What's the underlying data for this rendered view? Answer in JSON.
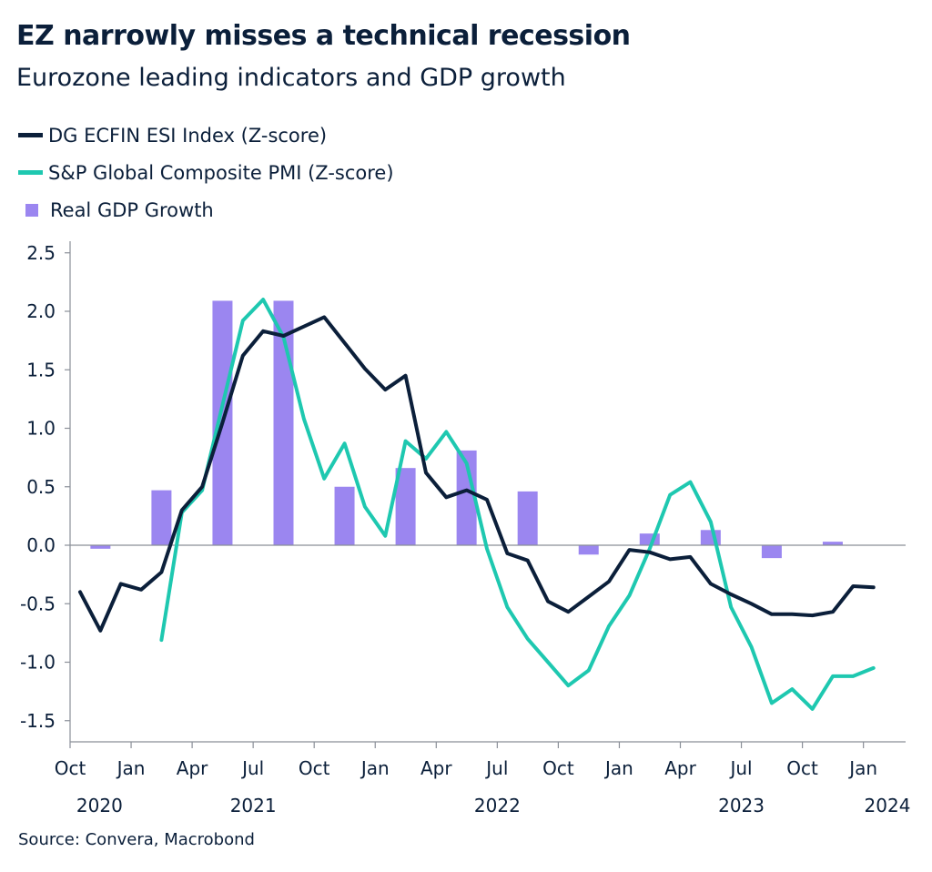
{
  "header": {
    "title": "EZ narrowly misses a technical recession",
    "subtitle": "Eurozone leading indicators and GDP growth"
  },
  "source": "Source: Convera, Macrobond",
  "colors": {
    "esi": "#0b1f3a",
    "pmi": "#1ec8b0",
    "gdp": "#9b86f0",
    "axis": "#8a8f98"
  },
  "chart_data": {
    "type": "bar+line",
    "title": "EZ narrowly misses a technical recession",
    "subtitle": "Eurozone leading indicators and GDP growth",
    "legend_position": "top-left",
    "grid": false,
    "ylim": [
      -1.6,
      2.6
    ],
    "yticks": [
      "2.5",
      "2.0",
      "1.5",
      "1.0",
      "0.5",
      "0.0",
      "-0.5",
      "-1.0",
      "-1.5"
    ],
    "xlim": [
      "2020-10",
      "2024-02"
    ],
    "xticks": [
      {
        "date": "2020-10",
        "label": "Oct"
      },
      {
        "date": "2021-01",
        "label": "Jan"
      },
      {
        "date": "2021-04",
        "label": "Apr"
      },
      {
        "date": "2021-07",
        "label": "Jul"
      },
      {
        "date": "2021-10",
        "label": "Oct"
      },
      {
        "date": "2022-01",
        "label": "Jan"
      },
      {
        "date": "2022-04",
        "label": "Apr"
      },
      {
        "date": "2022-07",
        "label": "Jul"
      },
      {
        "date": "2022-10",
        "label": "Oct"
      },
      {
        "date": "2023-01",
        "label": "Jan"
      },
      {
        "date": "2023-04",
        "label": "Apr"
      },
      {
        "date": "2023-07",
        "label": "Jul"
      },
      {
        "date": "2023-10",
        "label": "Oct"
      },
      {
        "date": "2024-01",
        "label": "Jan"
      }
    ],
    "year_labels": [
      {
        "date": "2020-11",
        "label": "2020"
      },
      {
        "date": "2021-07",
        "label": "2021"
      },
      {
        "date": "2022-07",
        "label": "2022"
      },
      {
        "date": "2023-07",
        "label": "2023"
      },
      {
        "date": "2024-01",
        "label": "2024"
      }
    ],
    "series": [
      {
        "name": "DG ECFIN ESI Index (Z-score)",
        "type": "line",
        "start": "2020-10",
        "values": [
          -0.4,
          -0.73,
          -0.33,
          -0.38,
          -0.23,
          0.3,
          0.5,
          1.05,
          1.62,
          1.83,
          1.79,
          1.87,
          1.95,
          1.73,
          1.51,
          1.33,
          1.45,
          0.62,
          0.41,
          0.47,
          0.39,
          -0.07,
          -0.13,
          -0.48,
          -0.57,
          -0.44,
          -0.31,
          -0.04,
          -0.06,
          -0.12,
          -0.1,
          -0.33,
          -0.42,
          -0.5,
          -0.59,
          -0.59,
          -0.6,
          -0.57,
          -0.35,
          -0.36
        ]
      },
      {
        "name": "S&P Global Composite PMI (Z-score)",
        "type": "line",
        "start": "2021-02",
        "values": [
          -0.81,
          0.28,
          0.47,
          1.2,
          1.92,
          2.1,
          1.78,
          1.08,
          0.57,
          0.87,
          0.33,
          0.08,
          0.89,
          0.74,
          0.97,
          0.7,
          -0.03,
          -0.53,
          -0.8,
          -1.0,
          -1.2,
          -1.07,
          -0.69,
          -0.43,
          -0.03,
          0.43,
          0.54,
          0.2,
          -0.53,
          -0.87,
          -1.35,
          -1.23,
          -1.4,
          -1.12,
          -1.12,
          -1.05
        ]
      },
      {
        "name": "Real GDP Growth",
        "type": "bar",
        "frequency": "quarterly",
        "categories": [
          "2020 Q4",
          "2021 Q1",
          "2021 Q2",
          "2021 Q3",
          "2021 Q4",
          "2022 Q1",
          "2022 Q2",
          "2022 Q3",
          "2022 Q4",
          "2023 Q1",
          "2023 Q2",
          "2023 Q3",
          "2023 Q4"
        ],
        "values": [
          -0.03,
          0.47,
          2.09,
          2.09,
          0.5,
          0.66,
          0.81,
          0.46,
          -0.08,
          0.1,
          0.13,
          -0.11,
          0.03
        ]
      }
    ]
  }
}
